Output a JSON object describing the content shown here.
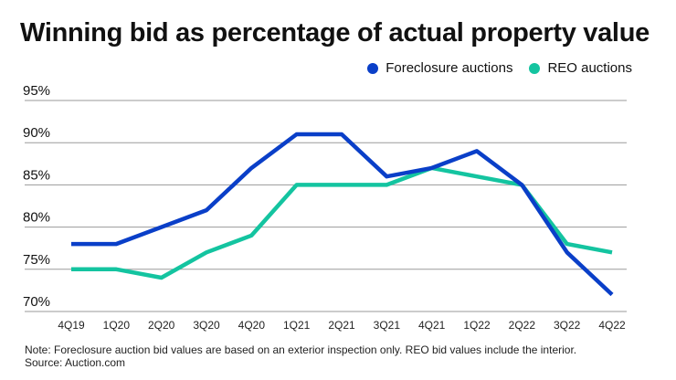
{
  "title": "Winning bid as percentage of actual property value",
  "legend": [
    {
      "label": "Foreclosure auctions",
      "color": "#0a3fc8"
    },
    {
      "label": "REO auctions",
      "color": "#14c4a0"
    }
  ],
  "chart_data": {
    "type": "line",
    "title": "Winning bid as percentage of actual property value",
    "xlabel": "",
    "ylabel": "",
    "categories": [
      "4Q19",
      "1Q20",
      "2Q20",
      "3Q20",
      "4Q20",
      "1Q21",
      "2Q21",
      "3Q21",
      "4Q21",
      "1Q22",
      "2Q22",
      "3Q22",
      "4Q22"
    ],
    "ylim": [
      70,
      95
    ],
    "yticks": [
      70,
      75,
      80,
      85,
      90,
      95
    ],
    "ytick_labels": [
      "70%",
      "75%",
      "80%",
      "85%",
      "90%",
      "95%"
    ],
    "grid": true,
    "legend_position": "top-right",
    "series": [
      {
        "name": "Foreclosure auctions",
        "color": "#0a3fc8",
        "values": [
          78,
          78,
          80,
          82,
          87,
          91,
          91,
          86,
          87,
          89,
          85,
          77,
          72
        ]
      },
      {
        "name": "REO auctions",
        "color": "#14c4a0",
        "values": [
          75,
          75,
          74,
          77,
          79,
          85,
          85,
          85,
          87,
          86,
          85,
          78,
          77
        ]
      }
    ]
  },
  "note": {
    "line1": "Note: Foreclosure auction bid values are based on an exterior inspection only. REO bid values include the interior.",
    "line2": "Source: Auction.com"
  }
}
